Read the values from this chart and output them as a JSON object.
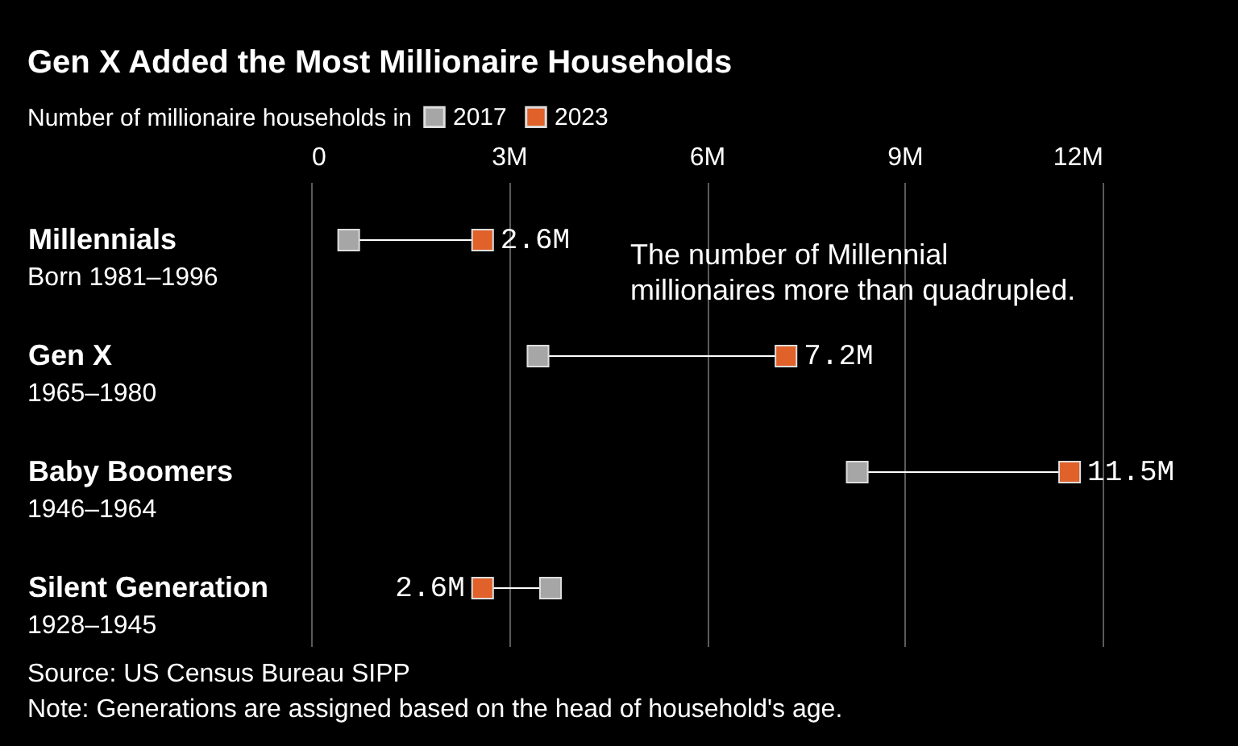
{
  "chart_data": {
    "type": "scatter",
    "orientation": "horizontal",
    "title": "Gen X Added the Most Millionaire Households",
    "legend_title": "Number of millionaire households in",
    "categories": [
      "Millennials",
      "Gen X",
      "Baby Boomers",
      "Silent Generation"
    ],
    "series": [
      {
        "name": "2017",
        "color": "#a6a6a6",
        "values": [
          0.57,
          3.44,
          8.28,
          3.63
        ]
      },
      {
        "name": "2023",
        "color": "#e0612a",
        "values": [
          2.6,
          7.2,
          11.5,
          2.6
        ],
        "value_labels": [
          "2.6M",
          "7.2M",
          "11.5M",
          "2.6M"
        ]
      }
    ],
    "xlim": [
      0,
      12
    ],
    "xticks": [
      {
        "value": 0,
        "label": "0"
      },
      {
        "value": 3,
        "label": "3M"
      },
      {
        "value": 6,
        "label": "6M"
      },
      {
        "value": 9,
        "label": "9M"
      },
      {
        "value": 12,
        "label": "12M"
      }
    ],
    "grid": "x",
    "legend": "top left",
    "marker": "square",
    "annotations": [
      "Born 1981–1996",
      "1965–1980",
      "1946–1964",
      "1928–1945",
      "The number of Millennial millionaires more than quadrupled.",
      "Source: US Census Bureau SIPP",
      "Note: Generations are assigned based on the head of household's age."
    ]
  }
}
